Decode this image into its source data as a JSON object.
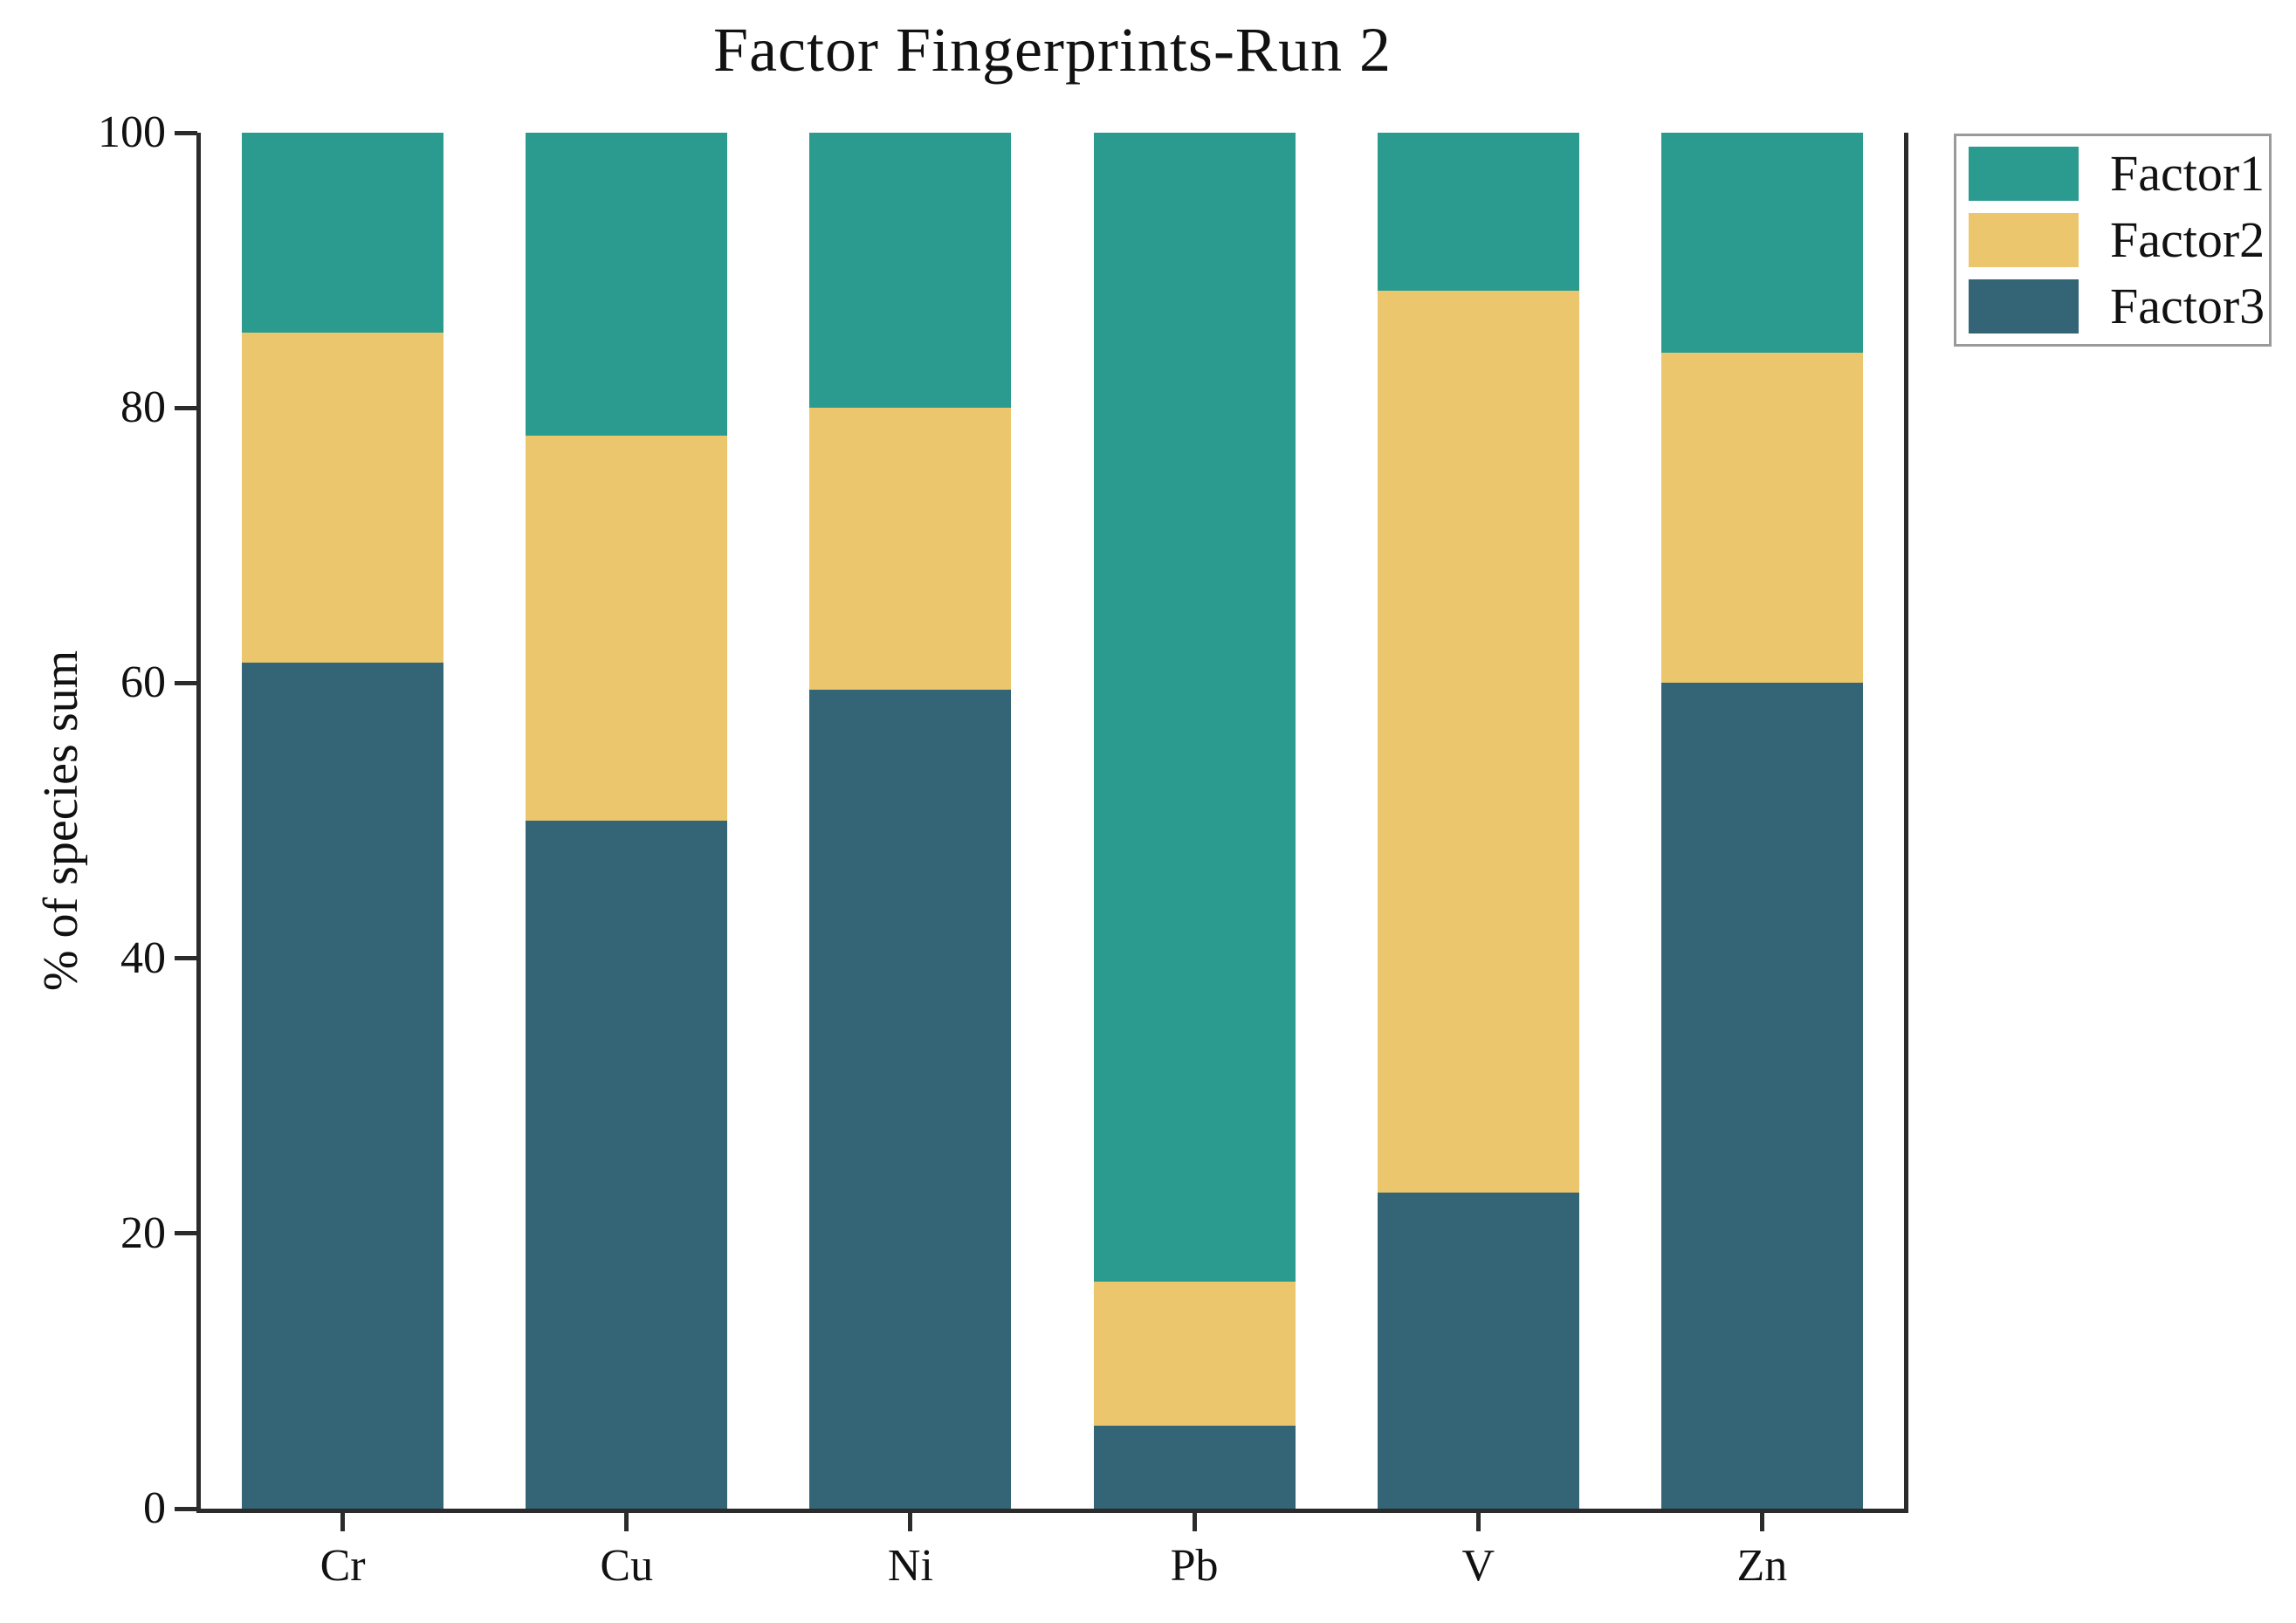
{
  "title": "Factor Fingerprints-Run 2",
  "y_axis": {
    "label": "% of species sum"
  },
  "legend": {
    "entries": [
      {
        "label": "Factor1",
        "color": "#2a9b8e"
      },
      {
        "label": "Factor2",
        "color": "#ecc66c"
      },
      {
        "label": "Factor3",
        "color": "#336577"
      }
    ]
  },
  "colors": {
    "factor1": "#2a9b8e",
    "factor2": "#ecc66c",
    "factor3": "#336577",
    "axis": "#2b2b2b"
  },
  "chart_data": {
    "type": "bar",
    "stacked": true,
    "title": "Factor Fingerprints-Run 2",
    "xlabel": "",
    "ylabel": "% of species sum",
    "categories": [
      "Cr",
      "Cu",
      "Ni",
      "Pb",
      "V",
      "Zn"
    ],
    "series": [
      {
        "name": "Factor1",
        "color": "#2a9b8e",
        "values": [
          14.5,
          22.0,
          20.0,
          83.5,
          11.5,
          16.0
        ]
      },
      {
        "name": "Factor2",
        "color": "#ecc66c",
        "values": [
          24.0,
          28.0,
          20.5,
          10.5,
          65.5,
          24.0
        ]
      },
      {
        "name": "Factor3",
        "color": "#336577",
        "values": [
          61.5,
          50.0,
          59.5,
          6.0,
          23.0,
          60.0
        ]
      }
    ],
    "stack_order_bottom_to_top": [
      "Factor3",
      "Factor2",
      "Factor1"
    ],
    "ylim": [
      0,
      100
    ],
    "yticks": [
      0,
      20,
      40,
      60,
      80,
      100
    ],
    "grid": false,
    "legend_position": "upper right"
  }
}
